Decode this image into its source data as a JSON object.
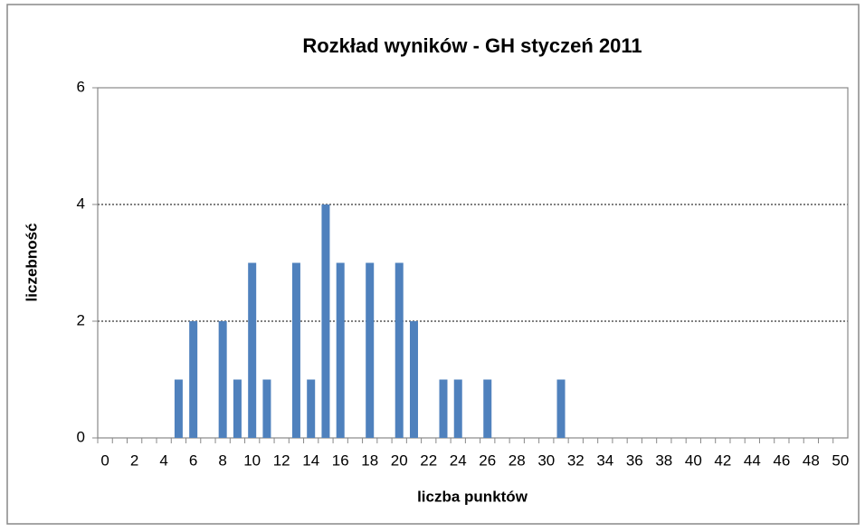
{
  "chart_data": {
    "type": "bar",
    "title": "Rozkład wyników - GH styczeń 2011",
    "x_label": "liczba punktów",
    "y_label": "liczebność",
    "categories": [
      0,
      null,
      2,
      null,
      4,
      null,
      6,
      null,
      8,
      null,
      10,
      null,
      12,
      null,
      14,
      null,
      16,
      null,
      18,
      null,
      20,
      null,
      22,
      null,
      24,
      null,
      26,
      null,
      28,
      null,
      30,
      null,
      32,
      null,
      34,
      null,
      36,
      null,
      38,
      null,
      40,
      null,
      42,
      null,
      44,
      null,
      46,
      null,
      48,
      null,
      50
    ],
    "values": [
      0,
      0,
      0,
      0,
      0,
      1,
      2,
      0,
      2,
      1,
      3,
      1,
      0,
      3,
      1,
      4,
      3,
      0,
      3,
      0,
      3,
      2,
      0,
      1,
      1,
      0,
      1,
      0,
      0,
      0,
      0,
      1,
      0,
      0,
      0,
      0,
      0,
      0,
      0,
      0,
      0,
      0,
      0,
      0,
      0,
      0,
      0,
      0,
      0,
      0,
      0
    ],
    "color": "#4f81bd",
    "ylim": [
      0,
      6
    ],
    "yticks": [
      0,
      2,
      4,
      6
    ],
    "grid": true
  }
}
